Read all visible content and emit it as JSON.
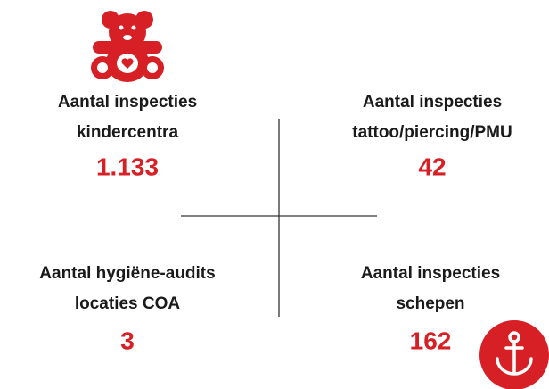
{
  "items": [
    {
      "label": [
        "Aantal inspecties",
        "kindercentra"
      ],
      "value": "1.133"
    },
    {
      "label": [
        "Aantal inspecties",
        "tattoo/piercing/PMU"
      ],
      "value": "42"
    },
    {
      "label": [
        "Aantal hygiëne-audits",
        "locaties COA"
      ],
      "value": "3"
    },
    {
      "label": [
        "Aantal inspecties",
        "schepen"
      ],
      "value": "162"
    }
  ]
}
